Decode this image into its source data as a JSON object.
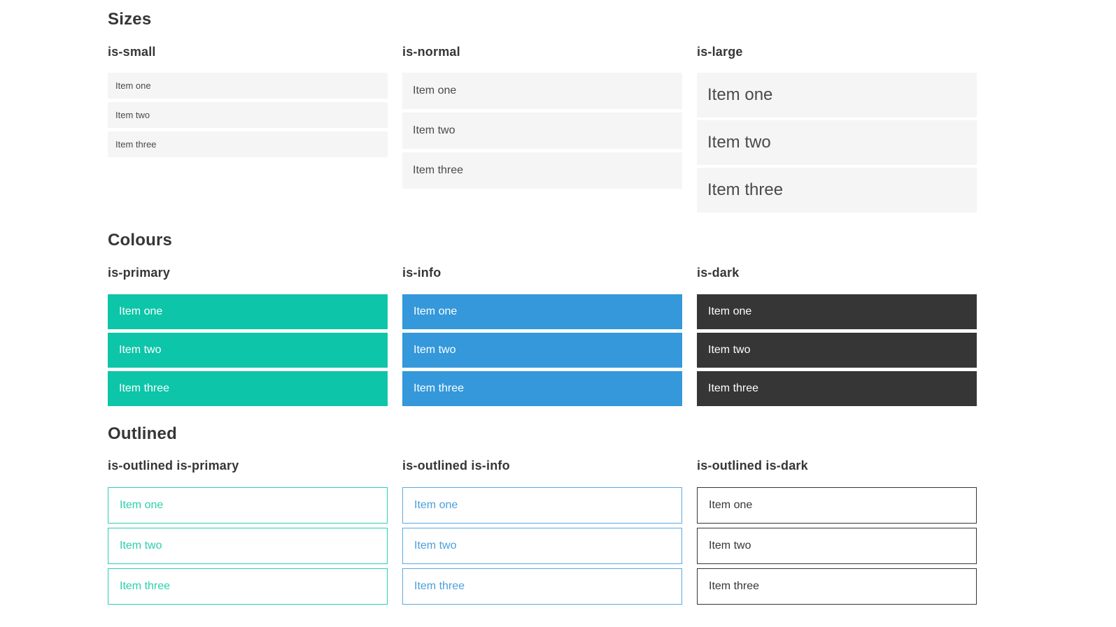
{
  "palette": {
    "primary": "#0dc5a8",
    "info": "#3498db",
    "dark": "#363636",
    "primary_outline": "#2bcfae",
    "info_outline": "#5aa9e0",
    "info_text": "#4a9fdc",
    "item_background": "#f5f5f5",
    "item_text": "#4a4a4a",
    "heading_text": "#363636"
  },
  "sections": [
    {
      "title": "Sizes",
      "groups": [
        {
          "heading": "is-small",
          "variant": "size-small",
          "items": [
            "Item one",
            "Item two",
            "Item three"
          ]
        },
        {
          "heading": "is-normal",
          "variant": "size-normal",
          "items": [
            "Item one",
            "Item two",
            "Item three"
          ]
        },
        {
          "heading": "is-large",
          "variant": "size-large",
          "items": [
            "Item one",
            "Item two",
            "Item three"
          ]
        }
      ]
    },
    {
      "title": "Colours",
      "groups": [
        {
          "heading": "is-primary",
          "variant": "color-primary",
          "items": [
            "Item one",
            "Item two",
            "Item three"
          ]
        },
        {
          "heading": "is-info",
          "variant": "color-info",
          "items": [
            "Item one",
            "Item two",
            "Item three"
          ]
        },
        {
          "heading": "is-dark",
          "variant": "color-dark",
          "items": [
            "Item one",
            "Item two",
            "Item three"
          ]
        }
      ]
    },
    {
      "title": "Outlined",
      "groups": [
        {
          "heading": "is-outlined is-primary",
          "variant": "outlined-primary",
          "items": [
            "Item one",
            "Item two",
            "Item three"
          ]
        },
        {
          "heading": "is-outlined is-info",
          "variant": "outlined-info",
          "items": [
            "Item one",
            "Item two",
            "Item three"
          ]
        },
        {
          "heading": "is-outlined is-dark",
          "variant": "outlined-dark",
          "items": [
            "Item one",
            "Item two",
            "Item three"
          ]
        }
      ]
    }
  ]
}
